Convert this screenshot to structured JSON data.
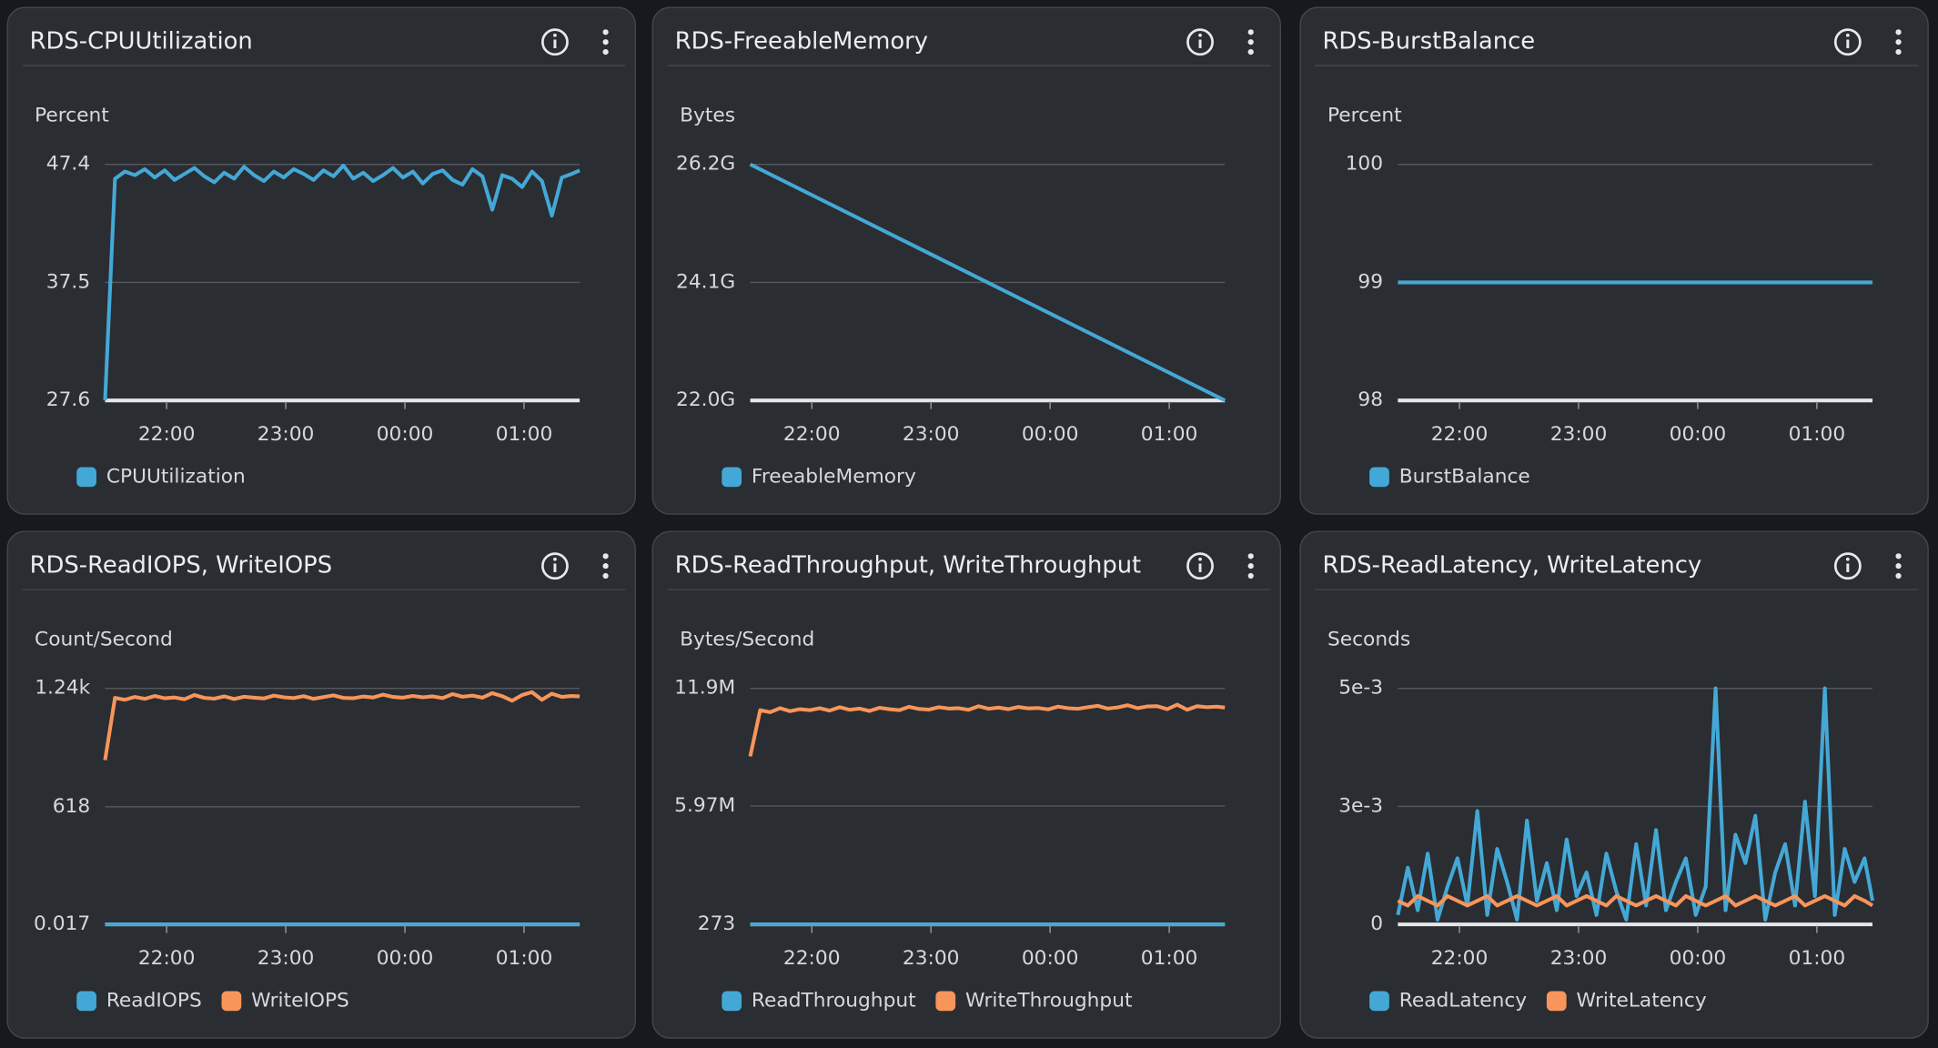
{
  "chart_data": [
    {
      "type": "line",
      "title": "RDS-CPUUtilization",
      "y_label": "Percent",
      "x": [
        "21:29",
        "21:34",
        "21:39",
        "21:44",
        "21:49",
        "21:54",
        "21:59",
        "22:04",
        "22:09",
        "22:14",
        "22:19",
        "22:24",
        "22:29",
        "22:34",
        "22:39",
        "22:44",
        "22:49",
        "22:54",
        "22:59",
        "23:04",
        "23:09",
        "23:14",
        "23:19",
        "23:24",
        "23:29",
        "23:34",
        "23:39",
        "23:44",
        "23:49",
        "23:54",
        "23:59",
        "00:04",
        "00:09",
        "00:14",
        "00:19",
        "00:24",
        "00:29",
        "00:34",
        "00:39",
        "00:44",
        "00:49",
        "00:54",
        "00:59",
        "01:04",
        "01:09",
        "01:14",
        "01:19",
        "01:24",
        "01:28"
      ],
      "xlim": [
        "21:29",
        "01:28"
      ],
      "xticks": [
        "22:00",
        "23:00",
        "00:00",
        "01:00"
      ],
      "ylim": [
        27.6,
        47.4
      ],
      "yticks": [
        27.6,
        37.5,
        47.4
      ],
      "grid": true,
      "legend": "bottom",
      "series": [
        {
          "name": "CPUUtilization",
          "color": "#44a8d6",
          "values": [
            27.6,
            46.2,
            46.8,
            46.5,
            47.0,
            46.3,
            46.9,
            46.1,
            46.6,
            47.1,
            46.4,
            45.9,
            46.7,
            46.2,
            47.2,
            46.5,
            46.0,
            46.8,
            46.3,
            47.0,
            46.6,
            46.1,
            46.9,
            46.4,
            47.3,
            46.2,
            46.7,
            46.0,
            46.5,
            47.1,
            46.3,
            46.8,
            45.8,
            46.6,
            46.9,
            46.1,
            45.7,
            47.0,
            46.4,
            43.6,
            46.5,
            46.2,
            45.5,
            46.8,
            46.0,
            43.1,
            46.3,
            46.6,
            46.9
          ]
        }
      ]
    },
    {
      "type": "line",
      "title": "RDS-FreeableMemory",
      "y_label": "Bytes",
      "x": [
        "21:29",
        "01:28"
      ],
      "xlim": [
        "21:29",
        "01:28"
      ],
      "xticks": [
        "22:00",
        "23:00",
        "00:00",
        "01:00"
      ],
      "ylim": [
        22000000000,
        26200000000
      ],
      "yticks": [
        {
          "value": 22000000000,
          "label": "22.0G"
        },
        {
          "value": 24100000000,
          "label": "24.1G"
        },
        {
          "value": 26200000000,
          "label": "26.2G"
        }
      ],
      "grid": true,
      "legend": "bottom",
      "series": [
        {
          "name": "FreeableMemory",
          "color": "#44a8d6",
          "values": [
            26200000000,
            22000000000
          ]
        }
      ]
    },
    {
      "type": "line",
      "title": "RDS-BurstBalance",
      "y_label": "Percent",
      "x": [
        "21:29",
        "01:28"
      ],
      "xlim": [
        "21:29",
        "01:28"
      ],
      "xticks": [
        "22:00",
        "23:00",
        "00:00",
        "01:00"
      ],
      "ylim": [
        98,
        100
      ],
      "yticks": [
        98,
        99,
        100
      ],
      "grid": true,
      "legend": "bottom",
      "series": [
        {
          "name": "BurstBalance",
          "color": "#44a8d6",
          "values": [
            99,
            99
          ]
        }
      ]
    },
    {
      "type": "line",
      "title": "RDS-ReadIOPS, WriteIOPS",
      "y_label": "Count/Second",
      "x": [
        "21:29",
        "21:34",
        "21:39",
        "21:44",
        "21:49",
        "21:54",
        "21:59",
        "22:04",
        "22:09",
        "22:14",
        "22:19",
        "22:24",
        "22:29",
        "22:34",
        "22:39",
        "22:44",
        "22:49",
        "22:54",
        "22:59",
        "23:04",
        "23:09",
        "23:14",
        "23:19",
        "23:24",
        "23:29",
        "23:34",
        "23:39",
        "23:44",
        "23:49",
        "23:54",
        "23:59",
        "00:04",
        "00:09",
        "00:14",
        "00:19",
        "00:24",
        "00:29",
        "00:34",
        "00:39",
        "00:44",
        "00:49",
        "00:54",
        "00:59",
        "01:04",
        "01:09",
        "01:14",
        "01:19",
        "01:24",
        "01:28"
      ],
      "xlim": [
        "21:29",
        "01:28"
      ],
      "xticks": [
        "22:00",
        "23:00",
        "00:00",
        "01:00"
      ],
      "ylim": [
        0.017,
        1240
      ],
      "yticks": [
        0.017,
        618,
        {
          "value": 1240,
          "label": "1.24k"
        }
      ],
      "grid": true,
      "legend": "bottom",
      "series": [
        {
          "name": "ReadIOPS",
          "color": "#44a8d6",
          "values": [
            0.017,
            0.017,
            0.017,
            0.017,
            0.017,
            0.017,
            0.017,
            0.017,
            0.017,
            0.017,
            0.017,
            0.017,
            0.017,
            0.017,
            0.017,
            0.017,
            0.017,
            0.017,
            0.017,
            0.017,
            0.017,
            0.017,
            0.017,
            0.017,
            0.017,
            0.017,
            0.017,
            0.017,
            0.017,
            0.017,
            0.017,
            0.017,
            0.017,
            0.017,
            0.017,
            0.017,
            0.017,
            0.017,
            0.017,
            0.017,
            0.017,
            0.017,
            0.017,
            0.017,
            0.017,
            0.017,
            0.017,
            0.017,
            0.017
          ]
        },
        {
          "name": "WriteIOPS",
          "color": "#f7955b",
          "values": [
            863,
            1190,
            1180,
            1195,
            1185,
            1200,
            1188,
            1192,
            1183,
            1205,
            1190,
            1186,
            1198,
            1184,
            1196,
            1191,
            1187,
            1202,
            1193,
            1189,
            1199,
            1185,
            1194,
            1203,
            1190,
            1188,
            1197,
            1192,
            1207,
            1195,
            1191,
            1200,
            1193,
            1198,
            1189,
            1210,
            1196,
            1202,
            1191,
            1215,
            1199,
            1175,
            1205,
            1220,
            1180,
            1212,
            1195,
            1200,
            1198
          ]
        }
      ]
    },
    {
      "type": "line",
      "title": "RDS-ReadThroughput, WriteThroughput",
      "y_label": "Bytes/Second",
      "x": [
        "21:29",
        "21:34",
        "21:39",
        "21:44",
        "21:49",
        "21:54",
        "21:59",
        "22:04",
        "22:09",
        "22:14",
        "22:19",
        "22:24",
        "22:29",
        "22:34",
        "22:39",
        "22:44",
        "22:49",
        "22:54",
        "22:59",
        "23:04",
        "23:09",
        "23:14",
        "23:19",
        "23:24",
        "23:29",
        "23:34",
        "23:39",
        "23:44",
        "23:49",
        "23:54",
        "23:59",
        "00:04",
        "00:09",
        "00:14",
        "00:19",
        "00:24",
        "00:29",
        "00:34",
        "00:39",
        "00:44",
        "00:49",
        "00:54",
        "00:59",
        "01:04",
        "01:09",
        "01:14",
        "01:19",
        "01:24",
        "01:28"
      ],
      "xlim": [
        "21:29",
        "01:28"
      ],
      "xticks": [
        "22:00",
        "23:00",
        "00:00",
        "01:00"
      ],
      "ylim": [
        273,
        11900000
      ],
      "yticks": [
        273,
        {
          "value": 5970000,
          "label": "5.97M"
        },
        {
          "value": 11900000,
          "label": "11.9M"
        }
      ],
      "grid": true,
      "legend": "bottom",
      "series": [
        {
          "name": "ReadThroughput",
          "color": "#44a8d6",
          "values": [
            273,
            273,
            273,
            273,
            273,
            273,
            273,
            273,
            273,
            273,
            273,
            273,
            273,
            273,
            273,
            273,
            273,
            273,
            273,
            273,
            273,
            273,
            273,
            273,
            273,
            273,
            273,
            273,
            273,
            273,
            273,
            273,
            273,
            273,
            273,
            273,
            273,
            273,
            273,
            273,
            273,
            273,
            273,
            273,
            273,
            273,
            273,
            273,
            273
          ]
        },
        {
          "name": "WriteThroughput",
          "color": "#f7955b",
          "values": [
            8470000,
            10800000,
            10700000,
            10900000,
            10750000,
            10850000,
            10800000,
            10900000,
            10780000,
            10950000,
            10820000,
            10880000,
            10760000,
            10920000,
            10850000,
            10800000,
            10970000,
            10860000,
            10830000,
            10950000,
            10880000,
            10900000,
            10820000,
            11000000,
            10870000,
            10930000,
            10850000,
            10960000,
            10890000,
            10910000,
            10840000,
            10980000,
            10900000,
            10870000,
            10950000,
            11020000,
            10880000,
            10940000,
            11050000,
            10900000,
            10990000,
            11000000,
            10850000,
            11080000,
            10820000,
            11000000,
            10950000,
            10980000,
            10930000
          ]
        }
      ]
    },
    {
      "type": "line",
      "title": "RDS-ReadLatency, WriteLatency",
      "y_label": "Seconds",
      "x": [
        "21:29",
        "21:34",
        "21:39",
        "21:44",
        "21:49",
        "21:54",
        "21:59",
        "22:04",
        "22:09",
        "22:14",
        "22:19",
        "22:24",
        "22:29",
        "22:34",
        "22:39",
        "22:44",
        "22:49",
        "22:54",
        "22:59",
        "23:04",
        "23:09",
        "23:14",
        "23:19",
        "23:24",
        "23:29",
        "23:34",
        "23:39",
        "23:44",
        "23:49",
        "23:54",
        "23:59",
        "00:04",
        "00:09",
        "00:14",
        "00:19",
        "00:24",
        "00:29",
        "00:34",
        "00:39",
        "00:44",
        "00:49",
        "00:54",
        "00:59",
        "01:04",
        "01:09",
        "01:14",
        "01:19",
        "01:24",
        "01:28"
      ],
      "xlim": [
        "21:29",
        "01:28"
      ],
      "xticks": [
        "22:00",
        "23:00",
        "00:00",
        "01:00"
      ],
      "ylim": [
        0,
        0.005
      ],
      "yticks": [
        0,
        {
          "value": 0.0025,
          "label": "3e-3"
        },
        {
          "value": 0.005,
          "label": "5e-3"
        }
      ],
      "grid": true,
      "legend": "bottom",
      "series": [
        {
          "name": "ReadLatency",
          "color": "#44a8d6",
          "values": [
            0.0002,
            0.0012,
            0.0003,
            0.0015,
            0.0001,
            0.0008,
            0.0014,
            0.0004,
            0.0024,
            0.0002,
            0.0016,
            0.0009,
            0.0001,
            0.0022,
            0.0005,
            0.0013,
            0.0003,
            0.0018,
            0.0006,
            0.0011,
            0.0002,
            0.0015,
            0.0007,
            0.0001,
            0.0017,
            0.0004,
            0.002,
            0.0003,
            0.0009,
            0.0014,
            0.0002,
            0.0008,
            0.005,
            0.0003,
            0.0019,
            0.0013,
            0.0023,
            0.0001,
            0.0011,
            0.0017,
            0.0004,
            0.0026,
            0.0006,
            0.005,
            0.0002,
            0.0016,
            0.0009,
            0.0014,
            0.0005
          ]
        },
        {
          "name": "WriteLatency",
          "color": "#f7955b",
          "values": [
            0.0005,
            0.0004,
            0.0006,
            0.0005,
            0.0004,
            0.0006,
            0.0005,
            0.0004,
            0.0005,
            0.0006,
            0.0004,
            0.0005,
            0.0006,
            0.0005,
            0.0004,
            0.0005,
            0.0006,
            0.0004,
            0.0005,
            0.0006,
            0.0005,
            0.0004,
            0.0006,
            0.0005,
            0.0004,
            0.0005,
            0.0006,
            0.0005,
            0.0004,
            0.0006,
            0.0005,
            0.0004,
            0.0005,
            0.0006,
            0.0004,
            0.0005,
            0.0006,
            0.0005,
            0.0004,
            0.0005,
            0.0006,
            0.0004,
            0.0005,
            0.0006,
            0.0005,
            0.0004,
            0.0006,
            0.0005,
            0.0004
          ]
        }
      ]
    }
  ]
}
